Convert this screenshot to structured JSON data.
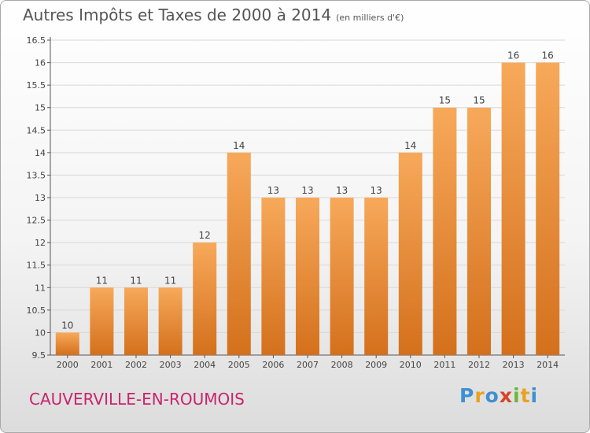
{
  "header": {
    "title": "Autres Impôts et Taxes de 2000 à 2014",
    "subtitle": "(en milliers d'€)"
  },
  "footer": {
    "city": "CAUVERVILLE-EN-ROUMOIS",
    "logo": "Proxiti"
  },
  "colors": {
    "bar_light": "#f7a95a",
    "bar_dark": "#d4701c",
    "title": "#555555",
    "city": "#c8246e"
  },
  "chart_data": {
    "type": "bar",
    "title": "Autres Impôts et Taxes de 2000 à 2014",
    "subtitle": "(en milliers d'€)",
    "categories": [
      "2000",
      "2001",
      "2002",
      "2003",
      "2004",
      "2005",
      "2006",
      "2007",
      "2008",
      "2009",
      "2010",
      "2011",
      "2012",
      "2013",
      "2014"
    ],
    "values": [
      10,
      11,
      11,
      11,
      12,
      14,
      13,
      13,
      13,
      13,
      14,
      15,
      15,
      16,
      16
    ],
    "data_labels": [
      "10",
      "11",
      "11",
      "11",
      "12",
      "14",
      "13",
      "13",
      "13",
      "13",
      "14",
      "15",
      "15",
      "16",
      "16"
    ],
    "ylim": [
      9.5,
      16.5
    ],
    "yticks": [
      9.5,
      10,
      10.5,
      11,
      11.5,
      12,
      12.5,
      13,
      13.5,
      14,
      14.5,
      15,
      15.5,
      16,
      16.5
    ],
    "ytick_labels": [
      "9.5",
      "10",
      "10.5",
      "11",
      "11.5",
      "12",
      "12.5",
      "13",
      "13.5",
      "14",
      "14.5",
      "15",
      "15.5",
      "16",
      "16.5"
    ],
    "xlabel": "",
    "ylabel": "",
    "grid": true
  }
}
